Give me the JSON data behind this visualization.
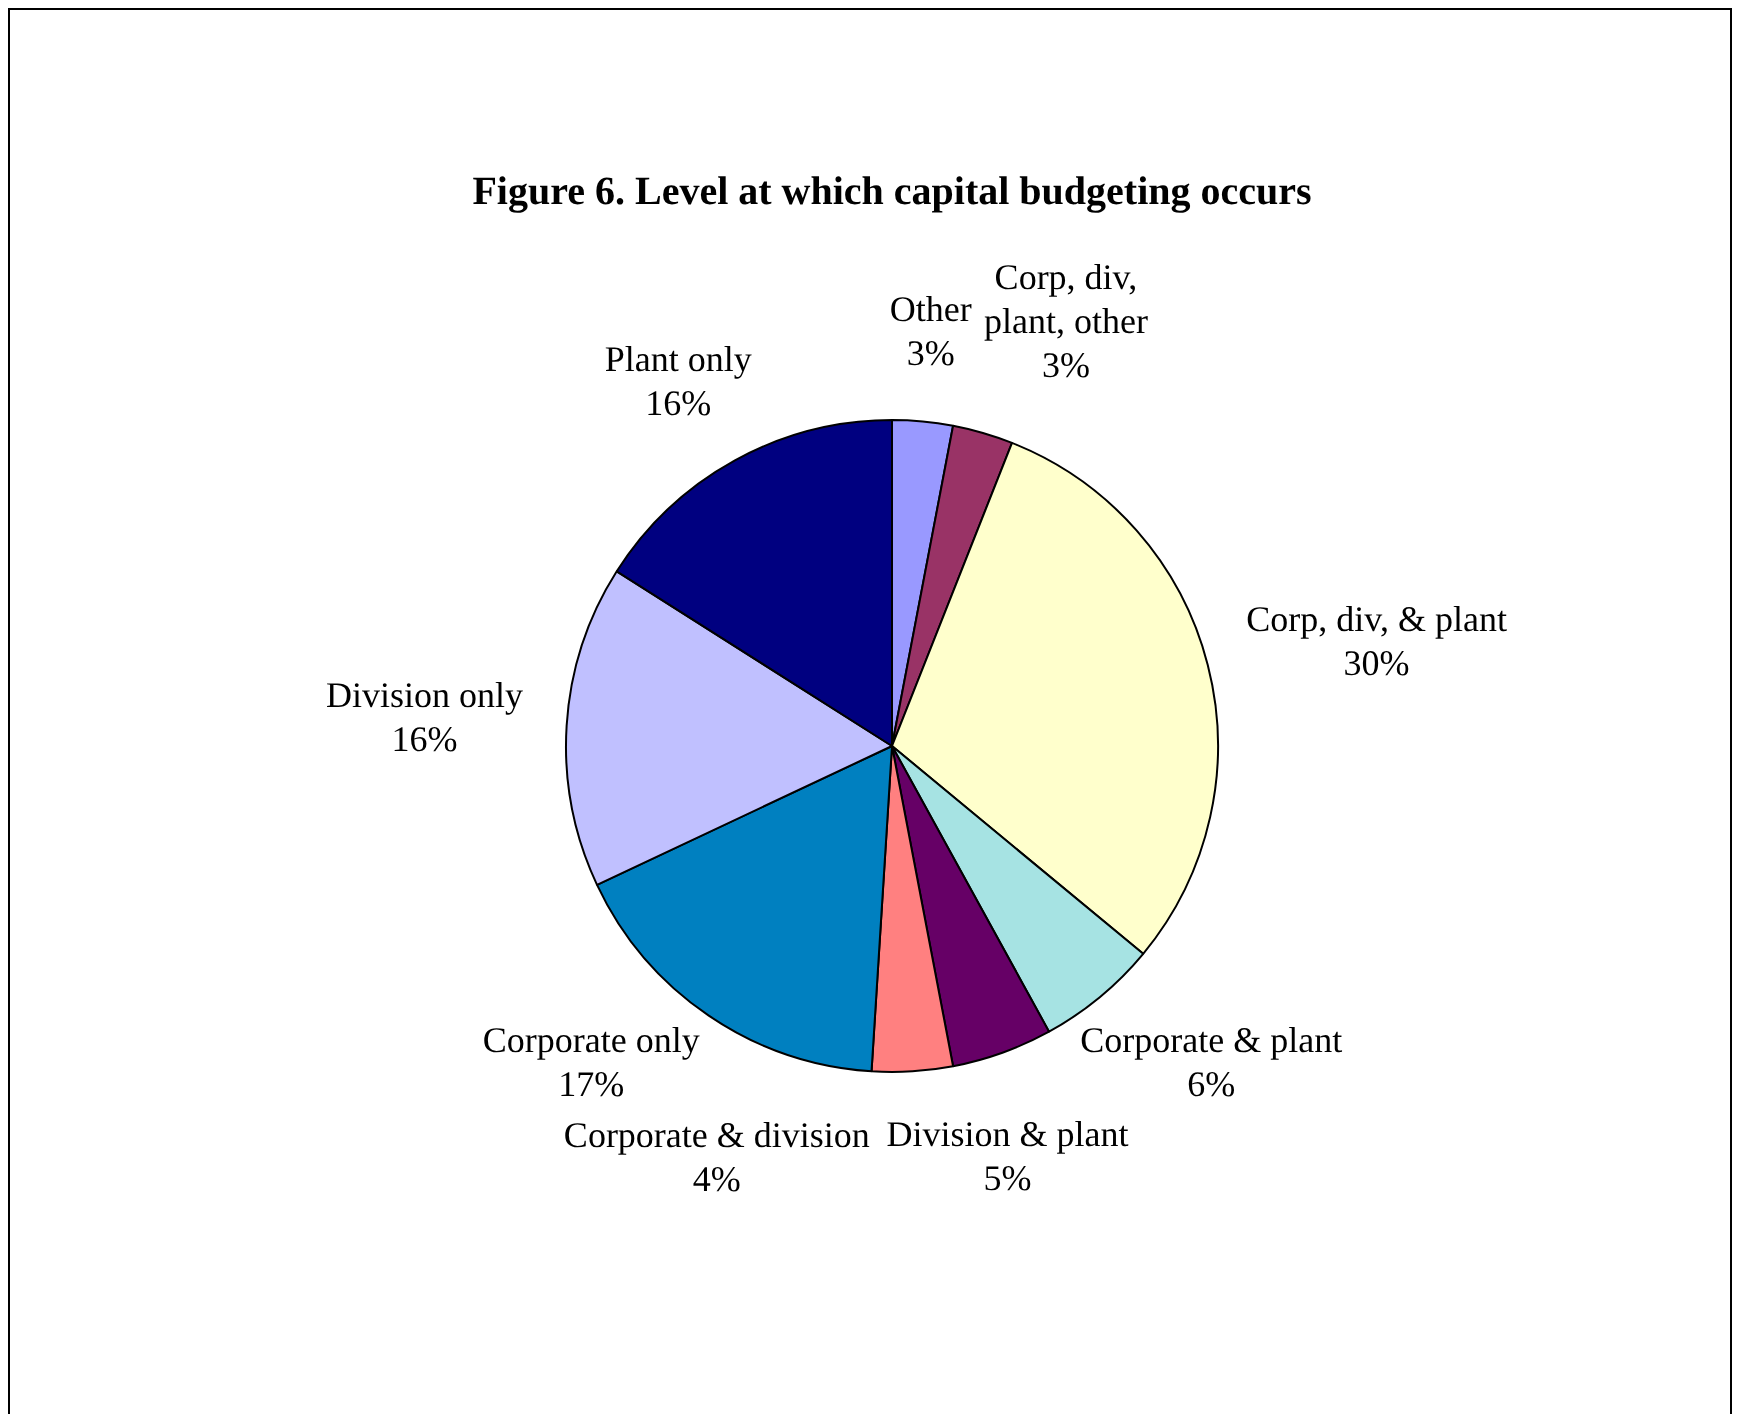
{
  "chart_data": {
    "type": "pie",
    "title": "Figure 6.  Level at which capital budgeting occurs",
    "categories": [
      "Other",
      "Corp, div, plant, other",
      "Corp, div, & plant",
      "Corporate & plant",
      "Division & plant",
      "Corporate & division",
      "Corporate only",
      "Division only",
      "Plant only"
    ],
    "values": [
      3,
      3,
      30,
      6,
      5,
      4,
      17,
      16,
      16
    ],
    "value_labels": [
      "3%",
      "3%",
      "30%",
      "6%",
      "5%",
      "4%",
      "17%",
      "16%",
      "16%"
    ],
    "colors": [
      "#9999ff",
      "#993366",
      "#ffffcc",
      "#a6e3e3",
      "#660066",
      "#ff8080",
      "#0080c0",
      "#c0c0ff",
      "#000080"
    ],
    "legend": false
  }
}
